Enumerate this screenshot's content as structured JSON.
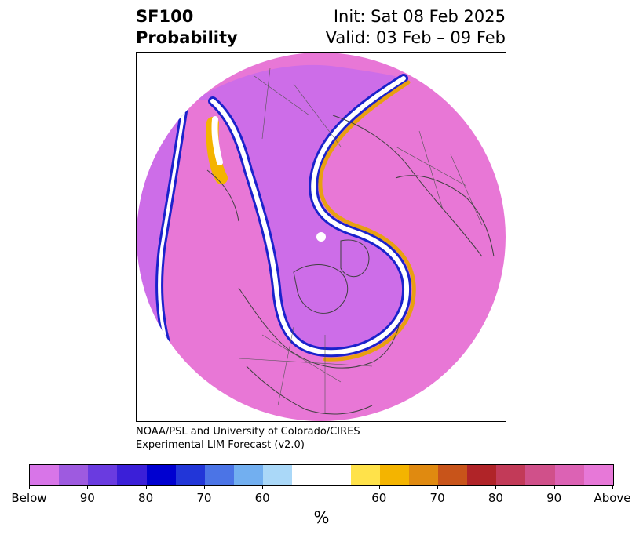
{
  "title": {
    "left_line1": "SF100",
    "left_line2": "Probability",
    "right_line1": "Init: Sat 08 Feb 2025",
    "right_line2": "Valid: 03 Feb – 09 Feb"
  },
  "credit": {
    "line1": "NOAA/PSL and University of Colorado/CIRES",
    "line2": "Experimental LIM Forecast (v2.0)"
  },
  "colorbar": {
    "unit": "%",
    "segments": [
      "#d875e8",
      "#9e5ae0",
      "#6a3be0",
      "#3b1fd8",
      "#0000d0",
      "#2236d8",
      "#4b74e6",
      "#72aff0",
      "#aad8f8",
      "#ffffff",
      "#ffffff",
      "#ffe24a",
      "#f4b400",
      "#e08a10",
      "#c8541a",
      "#b02428",
      "#c23a58",
      "#d0508a",
      "#dc62b4",
      "#e778d8"
    ],
    "tick_labels": [
      "Below",
      "90",
      "80",
      "70",
      "60",
      "60",
      "70",
      "80",
      "90",
      "Above"
    ]
  },
  "map": {
    "colors": {
      "below": "#d06ee6",
      "above": "#e877d6",
      "coast": "#404040"
    }
  }
}
